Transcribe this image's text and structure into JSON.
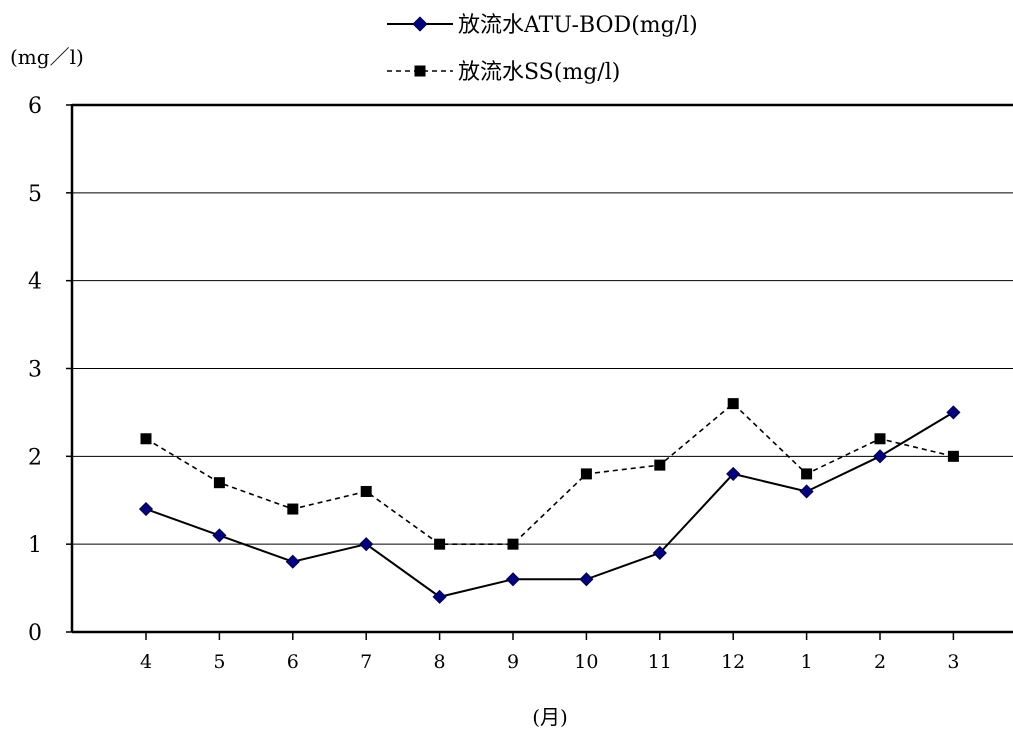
{
  "chart_data": {
    "type": "line",
    "title": "",
    "ylabel": "(mg／l)",
    "xlabel": "(月)",
    "ylim": [
      0,
      6
    ],
    "yticks": [
      0,
      1,
      2,
      3,
      4,
      5,
      6
    ],
    "categories": [
      "4",
      "5",
      "6",
      "7",
      "8",
      "9",
      "10",
      "11",
      "12",
      "1",
      "2",
      "3"
    ],
    "grid": "horizontal",
    "legend": "top-center",
    "series": [
      {
        "name": "放流水ATU-BOD(mg/l)",
        "values": [
          1.4,
          1.1,
          0.8,
          1.0,
          0.4,
          0.6,
          0.6,
          0.9,
          1.8,
          1.6,
          2.0,
          2.5
        ],
        "color": "#000080",
        "line_color": "#000000",
        "line_style": "solid",
        "marker": "diamond"
      },
      {
        "name": "放流水SS(mg/l)",
        "values": [
          2.2,
          1.7,
          1.4,
          1.6,
          1.0,
          1.0,
          1.8,
          1.9,
          2.6,
          1.8,
          2.2,
          2.0
        ],
        "color": "#000000",
        "line_color": "#000000",
        "line_style": "dashed",
        "marker": "square"
      }
    ]
  }
}
